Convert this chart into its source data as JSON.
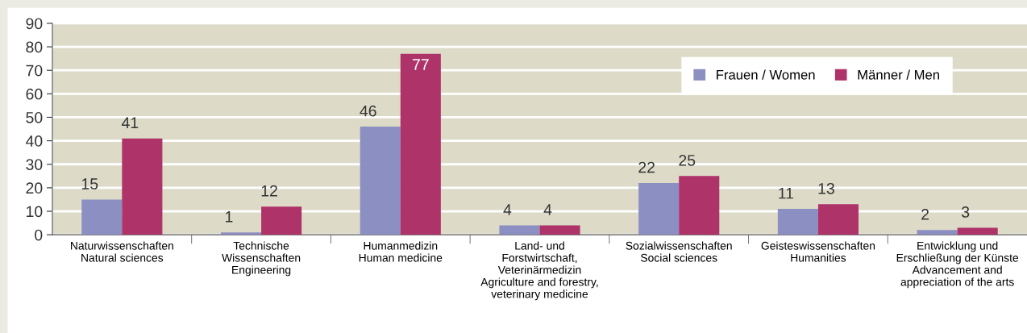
{
  "chart_data": {
    "type": "bar",
    "categories": [
      "Naturwissenschaften\nNatural sciences",
      "Technische\nWissenschaften\nEngineering",
      "Humanmedizin\nHuman medicine",
      "Land- und\nForstwirtschaft,\nVeterinärmedizin\nAgriculture and forestry,\nveterinary medicine",
      "Sozialwissenschaften\nSocial sciences",
      "Geisteswissenschaften\nHumanities",
      "Entwicklung und\nErschließung der Künste\nAdvancement and\nappreciation of the arts"
    ],
    "series": [
      {
        "name": "Frauen / Women",
        "color": "#8c8fc2",
        "values": [
          15,
          1,
          46,
          4,
          22,
          11,
          2
        ]
      },
      {
        "name": "Männer / Men",
        "color": "#ae3369",
        "values": [
          41,
          12,
          77,
          4,
          25,
          13,
          3
        ]
      }
    ],
    "ylim": [
      0,
      90
    ],
    "yticks": [
      0,
      10,
      20,
      30,
      40,
      50,
      60,
      70,
      80,
      90
    ],
    "grid": "y",
    "legend": "top right",
    "data_labels": true
  }
}
